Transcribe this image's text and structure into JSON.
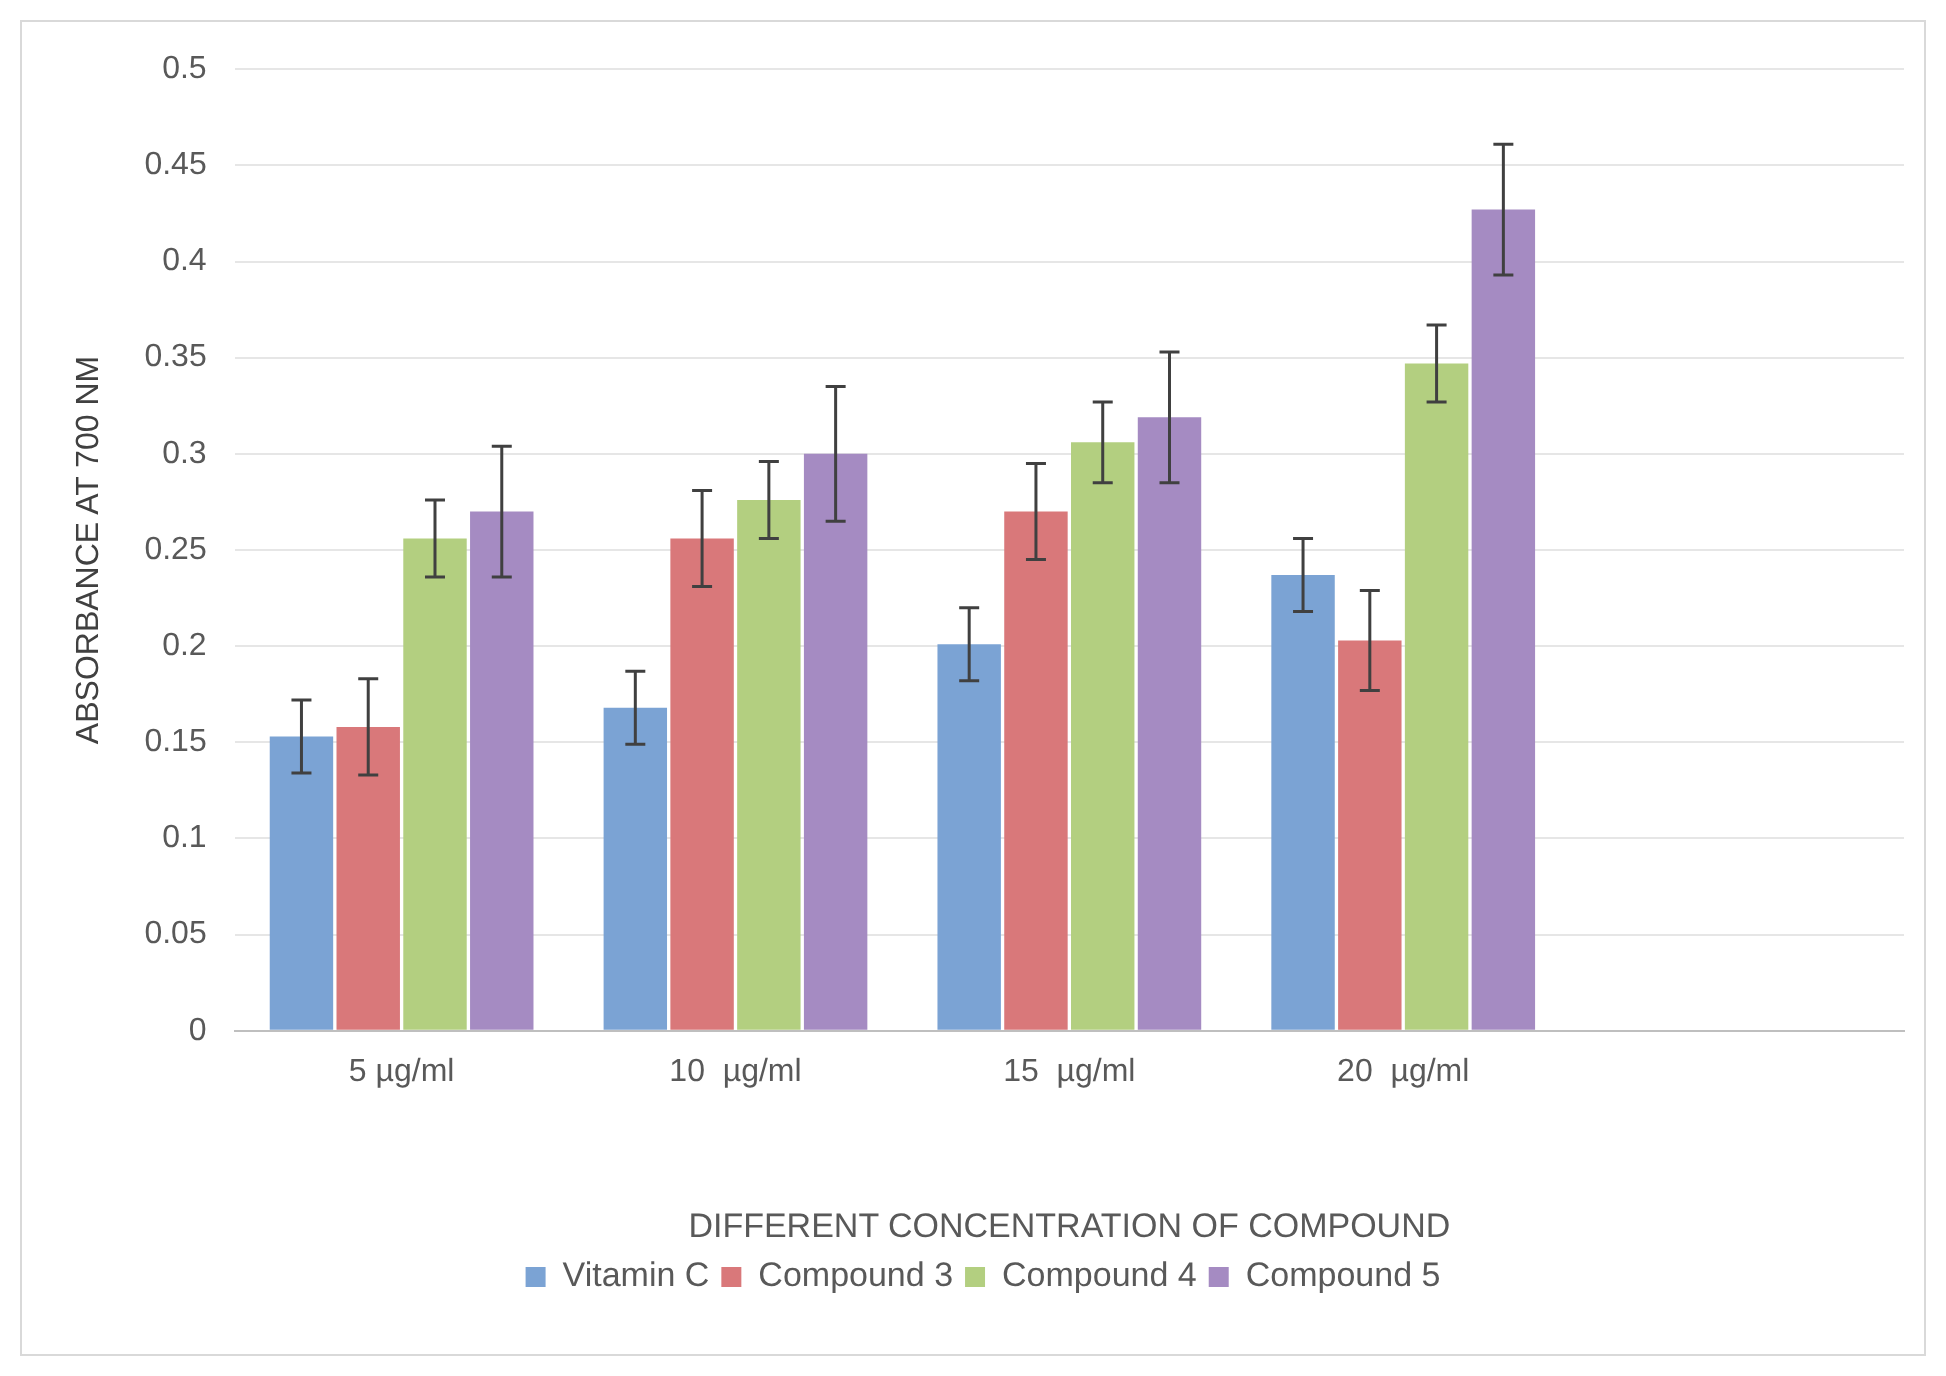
{
  "chart_data": {
    "type": "bar",
    "xlabel": "DIFFERENT CONCENTRATION OF COMPOUND",
    "ylabel": "ABSORBANCE AT 700 NM",
    "categories": [
      "5 µg/ml",
      "10  µg/ml",
      "15  µg/ml",
      "20  µg/ml",
      null
    ],
    "series": [
      {
        "name": "Vitamin C",
        "color": "#7ba3d4",
        "values": [
          0.153,
          0.168,
          0.201,
          0.237,
          null
        ],
        "errors": [
          0.019,
          0.019,
          0.019,
          0.019,
          null
        ]
      },
      {
        "name": "Compound 3",
        "color": "#d9787a",
        "values": [
          0.158,
          0.256,
          0.27,
          0.203,
          null
        ],
        "errors": [
          0.025,
          0.025,
          0.025,
          0.026,
          null
        ]
      },
      {
        "name": "Compound 4",
        "color": "#b3cf80",
        "values": [
          0.256,
          0.276,
          0.306,
          0.347,
          null
        ],
        "errors": [
          0.02,
          0.02,
          0.021,
          0.02,
          null
        ]
      },
      {
        "name": "Compound 5",
        "color": "#a58bc2",
        "values": [
          0.27,
          0.3,
          0.319,
          0.427,
          null
        ],
        "errors": [
          0.034,
          0.035,
          0.034,
          0.034,
          null
        ]
      }
    ],
    "ylim": [
      0,
      0.5
    ],
    "yticks": [
      0,
      0.05,
      0.1,
      0.15,
      0.2,
      0.25,
      0.3,
      0.35,
      0.4,
      0.45,
      0.5
    ],
    "grid": "y",
    "legend": "bottom"
  }
}
